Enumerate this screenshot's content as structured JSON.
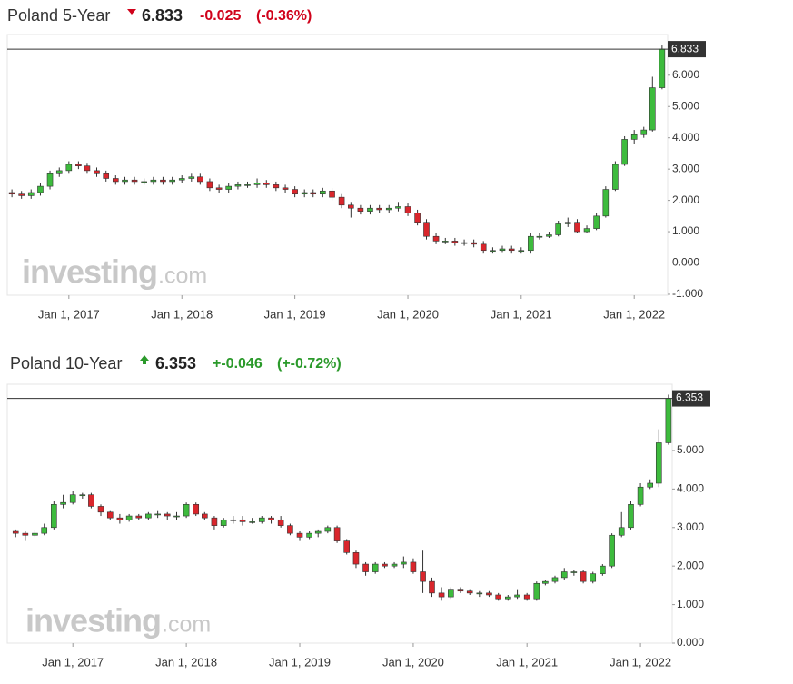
{
  "chart_data": [
    {
      "type": "candlestick",
      "title": "Poland 5-Year",
      "change": "-0.025",
      "change_pct": "(-0.36%)",
      "change_color": "#d0021b",
      "watermark": "investing",
      "watermark_domain": ".com",
      "up_color": "#3dbb3d",
      "down_color": "#d9262c",
      "x": [
        "2016-07-01",
        "2016-08-01",
        "2016-09-01",
        "2016-10-01",
        "2016-11-01",
        "2016-12-01",
        "2017-01-01",
        "2017-02-01",
        "2017-03-01",
        "2017-04-01",
        "2017-05-01",
        "2017-06-01",
        "2017-07-01",
        "2017-08-01",
        "2017-09-01",
        "2017-10-01",
        "2017-11-01",
        "2017-12-01",
        "2018-01-01",
        "2018-02-01",
        "2018-03-01",
        "2018-04-01",
        "2018-05-01",
        "2018-06-01",
        "2018-07-01",
        "2018-08-01",
        "2018-09-01",
        "2018-10-01",
        "2018-11-01",
        "2018-12-01",
        "2019-01-01",
        "2019-02-01",
        "2019-03-01",
        "2019-04-01",
        "2019-05-01",
        "2019-06-01",
        "2019-07-01",
        "2019-08-01",
        "2019-09-01",
        "2019-10-01",
        "2019-11-01",
        "2019-12-01",
        "2020-01-01",
        "2020-02-01",
        "2020-03-01",
        "2020-04-01",
        "2020-05-01",
        "2020-06-01",
        "2020-07-01",
        "2020-08-01",
        "2020-09-01",
        "2020-10-01",
        "2020-11-01",
        "2020-12-01",
        "2021-01-01",
        "2021-02-01",
        "2021-03-01",
        "2021-04-01",
        "2021-05-01",
        "2021-06-01",
        "2021-07-01",
        "2021-08-01",
        "2021-09-01",
        "2021-10-01",
        "2021-11-01",
        "2021-12-01",
        "2022-01-01",
        "2022-02-01",
        "2022-03-01",
        "2022-04-01"
      ],
      "open": [
        2.25,
        2.2,
        2.15,
        2.25,
        2.45,
        2.85,
        2.95,
        3.15,
        3.1,
        2.95,
        2.85,
        2.7,
        2.6,
        2.65,
        2.6,
        2.6,
        2.65,
        2.6,
        2.65,
        2.7,
        2.75,
        2.6,
        2.4,
        2.35,
        2.45,
        2.5,
        2.5,
        2.55,
        2.5,
        2.4,
        2.35,
        2.2,
        2.25,
        2.2,
        2.3,
        2.1,
        1.85,
        1.75,
        1.65,
        1.75,
        1.7,
        1.75,
        1.8,
        1.6,
        1.3,
        0.85,
        0.7,
        0.7,
        0.65,
        0.65,
        0.6,
        0.4,
        0.4,
        0.45,
        0.4,
        0.4,
        0.85,
        0.85,
        0.9,
        1.25,
        1.3,
        1.0,
        1.1,
        1.5,
        2.35,
        3.15,
        3.95,
        4.1,
        4.25,
        5.6
      ],
      "high": [
        2.35,
        2.3,
        2.35,
        2.55,
        2.95,
        3.05,
        3.25,
        3.25,
        3.2,
        3.05,
        2.95,
        2.8,
        2.75,
        2.75,
        2.7,
        2.75,
        2.75,
        2.75,
        2.8,
        2.85,
        2.85,
        2.7,
        2.5,
        2.55,
        2.6,
        2.6,
        2.7,
        2.65,
        2.6,
        2.5,
        2.45,
        2.35,
        2.35,
        2.4,
        2.4,
        2.2,
        1.95,
        1.85,
        1.85,
        1.85,
        1.85,
        1.95,
        1.9,
        1.7,
        1.4,
        0.95,
        0.8,
        0.8,
        0.75,
        0.75,
        0.7,
        0.5,
        0.55,
        0.55,
        0.5,
        0.95,
        0.95,
        1.0,
        1.35,
        1.45,
        1.4,
        1.2,
        1.6,
        2.45,
        3.25,
        4.05,
        4.25,
        4.35,
        5.95,
        6.95
      ],
      "low": [
        2.1,
        2.05,
        2.05,
        2.15,
        2.35,
        2.75,
        2.85,
        3.0,
        2.85,
        2.75,
        2.6,
        2.5,
        2.5,
        2.5,
        2.5,
        2.5,
        2.5,
        2.5,
        2.55,
        2.6,
        2.5,
        2.3,
        2.25,
        2.25,
        2.35,
        2.4,
        2.4,
        2.4,
        2.3,
        2.25,
        2.1,
        2.1,
        2.1,
        2.1,
        2.0,
        1.75,
        1.45,
        1.55,
        1.55,
        1.6,
        1.6,
        1.65,
        1.5,
        1.2,
        0.75,
        0.6,
        0.6,
        0.55,
        0.55,
        0.5,
        0.3,
        0.3,
        0.35,
        0.3,
        0.3,
        0.3,
        0.75,
        0.8,
        0.85,
        1.15,
        0.95,
        0.95,
        1.05,
        1.45,
        2.3,
        3.1,
        3.8,
        4.0,
        4.2,
        5.55
      ],
      "close": [
        2.2,
        2.15,
        2.25,
        2.45,
        2.85,
        2.95,
        3.15,
        3.1,
        2.95,
        2.85,
        2.7,
        2.6,
        2.65,
        2.6,
        2.6,
        2.65,
        2.6,
        2.65,
        2.7,
        2.75,
        2.6,
        2.4,
        2.35,
        2.45,
        2.5,
        2.5,
        2.55,
        2.5,
        2.4,
        2.35,
        2.2,
        2.25,
        2.2,
        2.3,
        2.1,
        1.85,
        1.75,
        1.65,
        1.75,
        1.7,
        1.75,
        1.8,
        1.6,
        1.3,
        0.85,
        0.7,
        0.7,
        0.65,
        0.65,
        0.6,
        0.4,
        0.4,
        0.45,
        0.4,
        0.4,
        0.85,
        0.85,
        0.9,
        1.25,
        1.3,
        1.0,
        1.1,
        1.5,
        2.35,
        3.15,
        3.95,
        4.1,
        4.25,
        5.6,
        6.833
      ],
      "xlim": [
        "2016-06-16",
        "2022-04-19"
      ],
      "xticks": [
        {
          "value": "2017-01-01",
          "label": "Jan 1, 2017"
        },
        {
          "value": "2018-01-01",
          "label": "Jan 1, 2018"
        },
        {
          "value": "2019-01-01",
          "label": "Jan 1, 2019"
        },
        {
          "value": "2020-01-01",
          "label": "Jan 1, 2020"
        },
        {
          "value": "2021-01-01",
          "label": "Jan 1, 2021"
        },
        {
          "value": "2022-01-01",
          "label": "Jan 1, 2022"
        }
      ],
      "ylim": [
        -1.03,
        7.3
      ],
      "yticks": [
        {
          "value": -1,
          "label": "-1.000"
        },
        {
          "value": 0,
          "label": "0.000"
        },
        {
          "value": 1,
          "label": "1.000"
        },
        {
          "value": 2,
          "label": "2.000"
        },
        {
          "value": 3,
          "label": "3.000"
        },
        {
          "value": 4,
          "label": "4.000"
        },
        {
          "value": 5,
          "label": "5.000"
        },
        {
          "value": 6,
          "label": "6.000"
        }
      ]
    },
    {
      "type": "candlestick",
      "title": "Poland 10-Year",
      "change": "+-0.046",
      "change_pct": "(+-0.72%)",
      "change_color": "#2b9a2b",
      "watermark": "investing",
      "watermark_domain": ".com",
      "up_color": "#3dbb3d",
      "down_color": "#d9262c",
      "x": [
        "2016-07-01",
        "2016-08-01",
        "2016-09-01",
        "2016-10-01",
        "2016-11-01",
        "2016-12-01",
        "2017-01-01",
        "2017-02-01",
        "2017-03-01",
        "2017-04-01",
        "2017-05-01",
        "2017-06-01",
        "2017-07-01",
        "2017-08-01",
        "2017-09-01",
        "2017-10-01",
        "2017-11-01",
        "2017-12-01",
        "2018-01-01",
        "2018-02-01",
        "2018-03-01",
        "2018-04-01",
        "2018-05-01",
        "2018-06-01",
        "2018-07-01",
        "2018-08-01",
        "2018-09-01",
        "2018-10-01",
        "2018-11-01",
        "2018-12-01",
        "2019-01-01",
        "2019-02-01",
        "2019-03-01",
        "2019-04-01",
        "2019-05-01",
        "2019-06-01",
        "2019-07-01",
        "2019-08-01",
        "2019-09-01",
        "2019-10-01",
        "2019-11-01",
        "2019-12-01",
        "2020-01-01",
        "2020-02-01",
        "2020-03-01",
        "2020-04-01",
        "2020-05-01",
        "2020-06-01",
        "2020-07-01",
        "2020-08-01",
        "2020-09-01",
        "2020-10-01",
        "2020-11-01",
        "2020-12-01",
        "2021-01-01",
        "2021-02-01",
        "2021-03-01",
        "2021-04-01",
        "2021-05-01",
        "2021-06-01",
        "2021-07-01",
        "2021-08-01",
        "2021-09-01",
        "2021-10-01",
        "2021-11-01",
        "2021-12-01",
        "2022-01-01",
        "2022-02-01",
        "2022-03-01",
        "2022-04-01"
      ],
      "open": [
        2.9,
        2.85,
        2.8,
        2.85,
        3.0,
        3.6,
        3.65,
        3.85,
        3.85,
        3.55,
        3.4,
        3.25,
        3.2,
        3.3,
        3.25,
        3.35,
        3.35,
        3.3,
        3.3,
        3.6,
        3.35,
        3.25,
        3.05,
        3.2,
        3.2,
        3.15,
        3.15,
        3.25,
        3.2,
        3.05,
        2.85,
        2.75,
        2.85,
        2.9,
        3.0,
        2.65,
        2.35,
        2.05,
        1.85,
        2.05,
        2.0,
        2.05,
        2.1,
        1.85,
        1.6,
        1.3,
        1.2,
        1.4,
        1.35,
        1.3,
        1.3,
        1.25,
        1.15,
        1.2,
        1.25,
        1.15,
        1.55,
        1.6,
        1.7,
        1.85,
        1.85,
        1.6,
        1.8,
        2.0,
        2.8,
        3.0,
        3.6,
        4.05,
        4.15,
        5.2
      ],
      "high": [
        2.95,
        2.9,
        2.95,
        3.1,
        3.7,
        3.85,
        3.95,
        3.9,
        3.9,
        3.6,
        3.45,
        3.35,
        3.35,
        3.35,
        3.4,
        3.45,
        3.4,
        3.4,
        3.65,
        3.65,
        3.4,
        3.3,
        3.25,
        3.3,
        3.3,
        3.25,
        3.3,
        3.3,
        3.3,
        3.1,
        2.9,
        2.9,
        2.95,
        3.05,
        3.05,
        2.7,
        2.4,
        2.1,
        2.1,
        2.1,
        2.1,
        2.25,
        2.2,
        2.4,
        1.7,
        1.45,
        1.45,
        1.45,
        1.4,
        1.35,
        1.35,
        1.3,
        1.25,
        1.4,
        1.3,
        1.6,
        1.65,
        1.75,
        1.95,
        1.9,
        1.9,
        1.85,
        2.05,
        2.85,
        3.4,
        3.7,
        4.15,
        4.25,
        5.55,
        6.45
      ],
      "low": [
        2.75,
        2.65,
        2.75,
        2.8,
        2.95,
        3.5,
        3.6,
        3.75,
        3.5,
        3.3,
        3.2,
        3.1,
        3.15,
        3.2,
        3.2,
        3.25,
        3.2,
        3.2,
        3.25,
        3.3,
        3.2,
        2.95,
        3.0,
        3.1,
        3.05,
        3.1,
        3.1,
        3.1,
        3.0,
        2.8,
        2.65,
        2.7,
        2.75,
        2.85,
        2.6,
        2.3,
        1.95,
        1.75,
        1.8,
        1.95,
        1.95,
        1.95,
        1.8,
        1.3,
        1.2,
        1.1,
        1.15,
        1.3,
        1.25,
        1.2,
        1.2,
        1.1,
        1.1,
        1.15,
        1.1,
        1.1,
        1.5,
        1.55,
        1.65,
        1.75,
        1.55,
        1.55,
        1.75,
        1.95,
        2.75,
        2.95,
        3.55,
        4.0,
        4.05,
        5.15
      ],
      "close": [
        2.85,
        2.8,
        2.85,
        3.0,
        3.6,
        3.65,
        3.85,
        3.85,
        3.55,
        3.4,
        3.25,
        3.2,
        3.3,
        3.25,
        3.35,
        3.35,
        3.3,
        3.3,
        3.6,
        3.35,
        3.25,
        3.05,
        3.2,
        3.2,
        3.15,
        3.15,
        3.25,
        3.2,
        3.05,
        2.85,
        2.75,
        2.85,
        2.9,
        3.0,
        2.65,
        2.35,
        2.05,
        1.85,
        2.05,
        2.0,
        2.05,
        2.1,
        1.85,
        1.6,
        1.3,
        1.2,
        1.4,
        1.35,
        1.3,
        1.3,
        1.25,
        1.15,
        1.2,
        1.25,
        1.15,
        1.55,
        1.6,
        1.7,
        1.85,
        1.85,
        1.6,
        1.8,
        2.0,
        2.8,
        3.0,
        3.6,
        4.05,
        4.15,
        5.2,
        6.353
      ],
      "xlim": [
        "2016-06-04",
        "2022-04-13"
      ],
      "xticks": [
        {
          "value": "2017-01-01",
          "label": "Jan 1, 2017"
        },
        {
          "value": "2018-01-01",
          "label": "Jan 1, 2018"
        },
        {
          "value": "2019-01-01",
          "label": "Jan 1, 2019"
        },
        {
          "value": "2020-01-01",
          "label": "Jan 1, 2020"
        },
        {
          "value": "2021-01-01",
          "label": "Jan 1, 2021"
        },
        {
          "value": "2022-01-01",
          "label": "Jan 1, 2022"
        }
      ],
      "ylim": [
        0,
        6.72
      ],
      "yticks": [
        {
          "value": 0,
          "label": "0.000"
        },
        {
          "value": 1,
          "label": "1.000"
        },
        {
          "value": 2,
          "label": "2.000"
        },
        {
          "value": 3,
          "label": "3.000"
        },
        {
          "value": 4,
          "label": "4.000"
        },
        {
          "value": 5,
          "label": "5.000"
        }
      ]
    }
  ]
}
